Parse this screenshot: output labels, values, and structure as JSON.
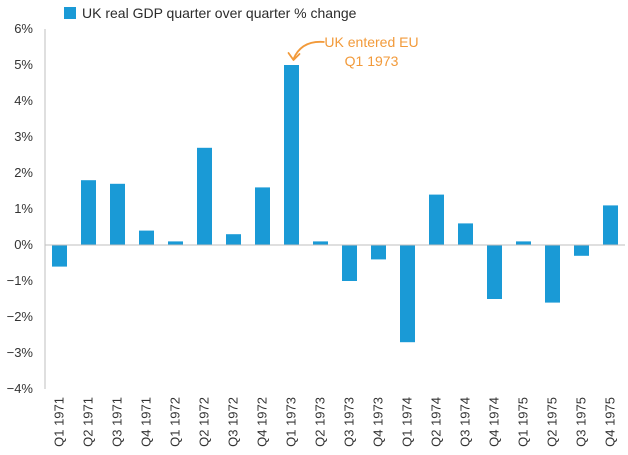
{
  "chart_data": {
    "type": "bar",
    "legend": {
      "label": "UK real GDP quarter over quarter % change",
      "position": "top-left"
    },
    "categories": [
      "Q1 1971",
      "Q2 1971",
      "Q3 1971",
      "Q4 1971",
      "Q1 1972",
      "Q2 1972",
      "Q3 1972",
      "Q4 1972",
      "Q1 1973",
      "Q2 1973",
      "Q3 1973",
      "Q4 1973",
      "Q1 1974",
      "Q2 1974",
      "Q3 1974",
      "Q4 1974",
      "Q1 1975",
      "Q2 1975",
      "Q3 1975",
      "Q4 1975"
    ],
    "series": [
      {
        "name": "UK real GDP quarter over quarter % change",
        "values": [
          -0.6,
          1.8,
          1.7,
          0.4,
          0.1,
          2.7,
          0.3,
          1.6,
          5.0,
          0.1,
          -1.0,
          -0.4,
          -2.7,
          1.4,
          0.6,
          -1.5,
          0.1,
          -1.6,
          -0.3,
          1.1
        ]
      }
    ],
    "ylim": [
      -4,
      6
    ],
    "yticks": [
      6,
      5,
      4,
      3,
      2,
      1,
      0,
      -1,
      -2,
      -3,
      -4
    ],
    "ytick_labels": [
      "6%",
      "5%",
      "4%",
      "3%",
      "2%",
      "1%",
      "0%",
      "−1%",
      "−2%",
      "−3%",
      "−4%"
    ],
    "grid": false,
    "annotation": {
      "lines": [
        "UK entered EU",
        "Q1 1973"
      ],
      "target_category": "Q1 1973"
    },
    "colors": {
      "bar": "#1a9ad6",
      "annotation": "#f29a3a",
      "axis": "#bfbfbf"
    }
  }
}
